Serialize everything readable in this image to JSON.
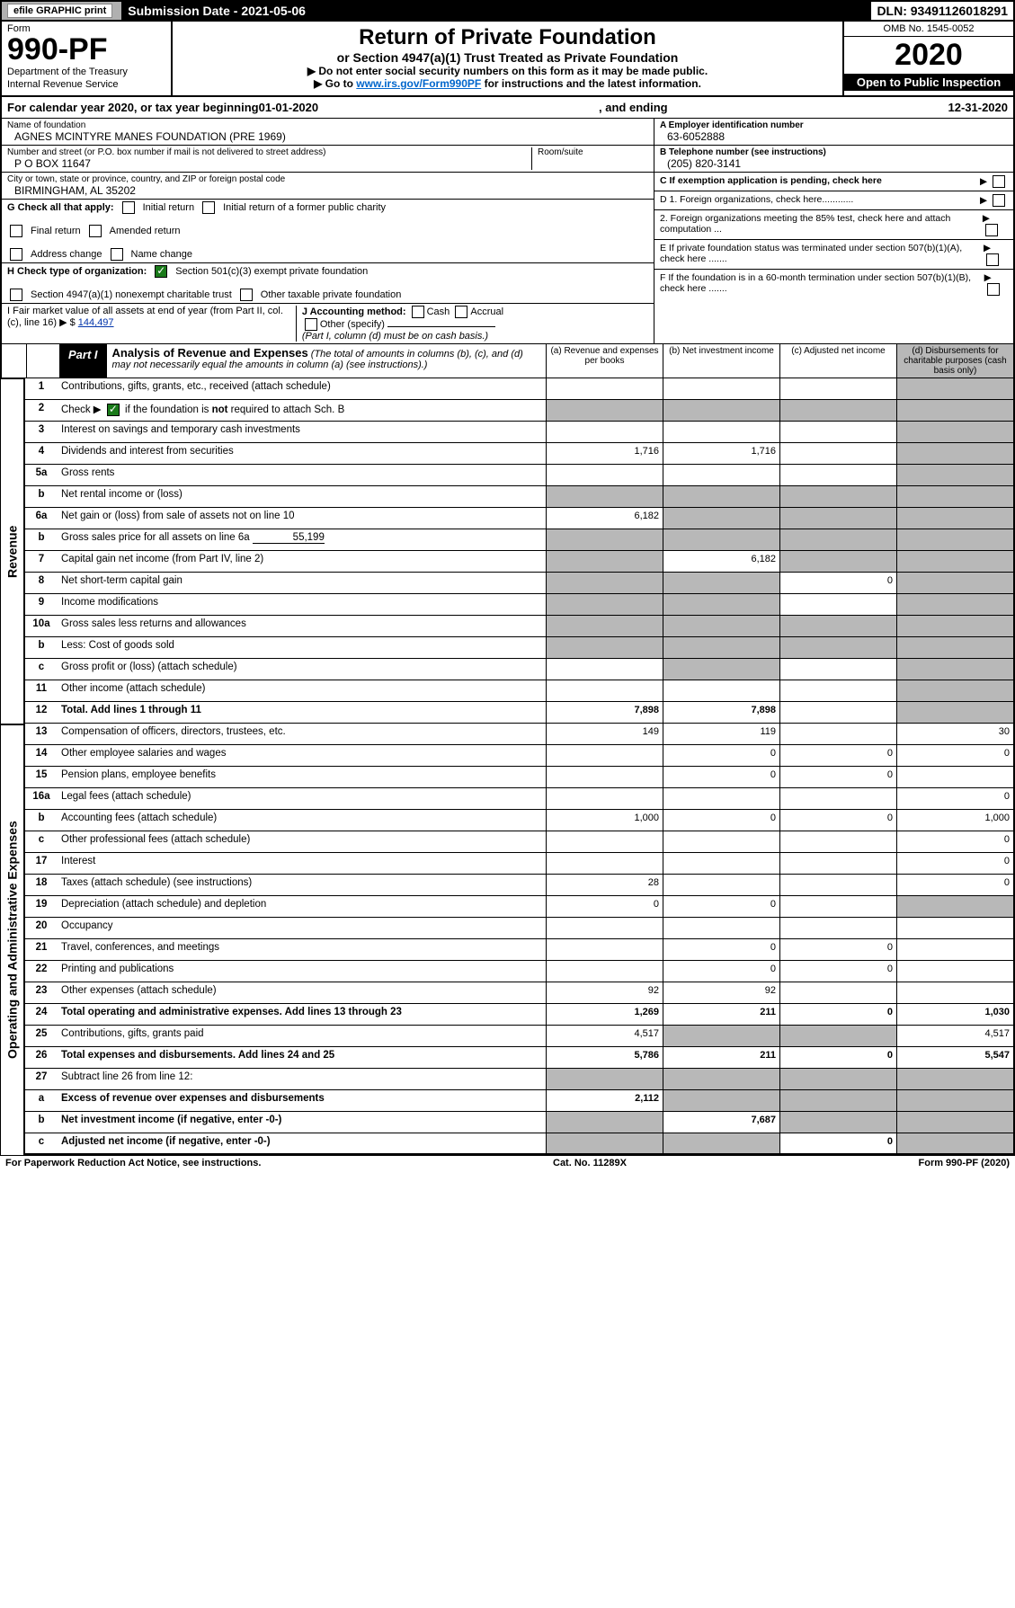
{
  "header": {
    "efile": "efile GRAPHIC print",
    "submission": "Submission Date - 2021-05-06",
    "dln": "DLN: 93491126018291"
  },
  "formbox": {
    "form_word": "Form",
    "form_num": "990-PF",
    "dept1": "Department of the Treasury",
    "dept2": "Internal Revenue Service",
    "title": "Return of Private Foundation",
    "subtitle": "or Section 4947(a)(1) Trust Treated as Private Foundation",
    "note1": "▶ Do not enter social security numbers on this form as it may be made public.",
    "note2_pre": "▶ Go to ",
    "note2_link": "www.irs.gov/Form990PF",
    "note2_post": " for instructions and the latest information.",
    "omb": "OMB No. 1545-0052",
    "year": "2020",
    "inspection": "Open to Public Inspection"
  },
  "calendar": {
    "text_pre": "For calendar year 2020, or tax year beginning ",
    "begin": "01-01-2020",
    "mid": " , and ending ",
    "end": "12-31-2020"
  },
  "entity": {
    "name_label": "Name of foundation",
    "name": "AGNES MCINTYRE MANES FOUNDATION (PRE 1969)",
    "addr_label": "Number and street (or P.O. box number if mail is not delivered to street address)",
    "room_label": "Room/suite",
    "addr": "P O BOX 11647",
    "city_label": "City or town, state or province, country, and ZIP or foreign postal code",
    "city": "BIRMINGHAM, AL  35202",
    "A_label": "A Employer identification number",
    "A_val": "63-6052888",
    "B_label": "B Telephone number (see instructions)",
    "B_val": "(205) 820-3141",
    "C_label": "C If exemption application is pending, check here"
  },
  "G": {
    "label": "G Check all that apply:",
    "opts": [
      "Initial return",
      "Initial return of a former public charity",
      "Final return",
      "Amended return",
      "Address change",
      "Name change"
    ]
  },
  "H": {
    "label": "H Check type of organization:",
    "opt1": "Section 501(c)(3) exempt private foundation",
    "opt2": "Section 4947(a)(1) nonexempt charitable trust",
    "opt3": "Other taxable private foundation"
  },
  "I": {
    "label": "I Fair market value of all assets at end of year (from Part II, col. (c), line 16) ▶ $",
    "val": "144,497"
  },
  "J": {
    "label": "J Accounting method:",
    "cash": "Cash",
    "accrual": "Accrual",
    "other": "Other (specify)",
    "note": "(Part I, column (d) must be on cash basis.)"
  },
  "D": {
    "d1": "D 1. Foreign organizations, check here............",
    "d2": "2. Foreign organizations meeting the 85% test, check here and attach computation ..."
  },
  "E": "E  If private foundation status was terminated under section 507(b)(1)(A), check here .......",
  "F": "F  If the foundation is in a 60-month termination under section 507(b)(1)(B), check here .......",
  "part1": {
    "label": "Part I",
    "title": "Analysis of Revenue and Expenses",
    "note": " (The total of amounts in columns (b), (c), and (d) may not necessarily equal the amounts in column (a) (see instructions).)",
    "cols": {
      "a": "(a) Revenue and expenses per books",
      "b": "(b) Net investment income",
      "c": "(c) Adjusted net income",
      "d": "(d) Disbursements for charitable purposes (cash basis only)"
    }
  },
  "side_labels": {
    "revenue": "Revenue",
    "expenses": "Operating and Administrative Expenses"
  },
  "lines": {
    "l1": {
      "n": "1",
      "t": "Contributions, gifts, grants, etc., received (attach schedule)",
      "a": "",
      "b": "",
      "c": "",
      "d": "",
      "sa": false,
      "sb": false,
      "sc": false,
      "sd": true
    },
    "l2": {
      "n": "2",
      "t": "Check ▶ ☑ if the foundation is not required to attach Sch. B",
      "t2": "",
      "a": "",
      "b": "",
      "c": "",
      "d": "",
      "sa": true,
      "sb": true,
      "sc": true,
      "sd": true,
      "checked": true
    },
    "l3": {
      "n": "3",
      "t": "Interest on savings and temporary cash investments",
      "a": "",
      "b": "",
      "c": "",
      "d": "",
      "sa": false,
      "sb": false,
      "sc": false,
      "sd": true
    },
    "l4": {
      "n": "4",
      "t": "Dividends and interest from securities",
      "a": "1,716",
      "b": "1,716",
      "c": "",
      "d": "",
      "sa": false,
      "sb": false,
      "sc": false,
      "sd": true
    },
    "l5a": {
      "n": "5a",
      "t": "Gross rents",
      "a": "",
      "b": "",
      "c": "",
      "d": "",
      "sa": false,
      "sb": false,
      "sc": false,
      "sd": true
    },
    "l5b": {
      "n": "b",
      "t": "Net rental income or (loss)",
      "a": "",
      "b": "",
      "c": "",
      "d": "",
      "sa": true,
      "sb": true,
      "sc": true,
      "sd": true
    },
    "l6a": {
      "n": "6a",
      "t": "Net gain or (loss) from sale of assets not on line 10",
      "a": "6,182",
      "b": "",
      "c": "",
      "d": "",
      "sa": false,
      "sb": true,
      "sc": true,
      "sd": true
    },
    "l6b": {
      "n": "b",
      "t": "Gross sales price for all assets on line 6a",
      "inline_val": "55,199",
      "a": "",
      "b": "",
      "c": "",
      "d": "",
      "sa": true,
      "sb": true,
      "sc": true,
      "sd": true
    },
    "l7": {
      "n": "7",
      "t": "Capital gain net income (from Part IV, line 2)",
      "a": "",
      "b": "6,182",
      "c": "",
      "d": "",
      "sa": true,
      "sb": false,
      "sc": true,
      "sd": true
    },
    "l8": {
      "n": "8",
      "t": "Net short-term capital gain",
      "a": "",
      "b": "",
      "c": "0",
      "d": "",
      "sa": true,
      "sb": true,
      "sc": false,
      "sd": true
    },
    "l9": {
      "n": "9",
      "t": "Income modifications",
      "a": "",
      "b": "",
      "c": "",
      "d": "",
      "sa": true,
      "sb": true,
      "sc": false,
      "sd": true
    },
    "l10a": {
      "n": "10a",
      "t": "Gross sales less returns and allowances",
      "a": "",
      "b": "",
      "c": "",
      "d": "",
      "sa": true,
      "sb": true,
      "sc": true,
      "sd": true
    },
    "l10b": {
      "n": "b",
      "t": "Less: Cost of goods sold",
      "a": "",
      "b": "",
      "c": "",
      "d": "",
      "sa": true,
      "sb": true,
      "sc": true,
      "sd": true
    },
    "l10c": {
      "n": "c",
      "t": "Gross profit or (loss) (attach schedule)",
      "a": "",
      "b": "",
      "c": "",
      "d": "",
      "sa": false,
      "sb": true,
      "sc": false,
      "sd": true
    },
    "l11": {
      "n": "11",
      "t": "Other income (attach schedule)",
      "a": "",
      "b": "",
      "c": "",
      "d": "",
      "sa": false,
      "sb": false,
      "sc": false,
      "sd": true
    },
    "l12": {
      "n": "12",
      "t": "Total. Add lines 1 through 11",
      "a": "7,898",
      "b": "7,898",
      "c": "",
      "d": "",
      "sa": false,
      "sb": false,
      "sc": false,
      "sd": true,
      "bold": true
    },
    "l13": {
      "n": "13",
      "t": "Compensation of officers, directors, trustees, etc.",
      "a": "149",
      "b": "119",
      "c": "",
      "d": "30"
    },
    "l14": {
      "n": "14",
      "t": "Other employee salaries and wages",
      "a": "",
      "b": "0",
      "c": "0",
      "d": "0"
    },
    "l15": {
      "n": "15",
      "t": "Pension plans, employee benefits",
      "a": "",
      "b": "0",
      "c": "0",
      "d": ""
    },
    "l16a": {
      "n": "16a",
      "t": "Legal fees (attach schedule)",
      "a": "",
      "b": "",
      "c": "",
      "d": "0"
    },
    "l16b": {
      "n": "b",
      "t": "Accounting fees (attach schedule)",
      "a": "1,000",
      "b": "0",
      "c": "0",
      "d": "1,000"
    },
    "l16c": {
      "n": "c",
      "t": "Other professional fees (attach schedule)",
      "a": "",
      "b": "",
      "c": "",
      "d": "0"
    },
    "l17": {
      "n": "17",
      "t": "Interest",
      "a": "",
      "b": "",
      "c": "",
      "d": "0"
    },
    "l18": {
      "n": "18",
      "t": "Taxes (attach schedule) (see instructions)",
      "a": "28",
      "b": "",
      "c": "",
      "d": "0"
    },
    "l19": {
      "n": "19",
      "t": "Depreciation (attach schedule) and depletion",
      "a": "0",
      "b": "0",
      "c": "",
      "d": "",
      "sd": true
    },
    "l20": {
      "n": "20",
      "t": "Occupancy",
      "a": "",
      "b": "",
      "c": "",
      "d": ""
    },
    "l21": {
      "n": "21",
      "t": "Travel, conferences, and meetings",
      "a": "",
      "b": "0",
      "c": "0",
      "d": ""
    },
    "l22": {
      "n": "22",
      "t": "Printing and publications",
      "a": "",
      "b": "0",
      "c": "0",
      "d": ""
    },
    "l23": {
      "n": "23",
      "t": "Other expenses (attach schedule)",
      "a": "92",
      "b": "92",
      "c": "",
      "d": ""
    },
    "l24": {
      "n": "24",
      "t": "Total operating and administrative expenses. Add lines 13 through 23",
      "a": "1,269",
      "b": "211",
      "c": "0",
      "d": "1,030",
      "bold": true
    },
    "l25": {
      "n": "25",
      "t": "Contributions, gifts, grants paid",
      "a": "4,517",
      "b": "",
      "c": "",
      "d": "4,517",
      "sb": true,
      "sc": true
    },
    "l26": {
      "n": "26",
      "t": "Total expenses and disbursements. Add lines 24 and 25",
      "a": "5,786",
      "b": "211",
      "c": "0",
      "d": "5,547",
      "bold": true
    },
    "l27": {
      "n": "27",
      "t": "Subtract line 26 from line 12:",
      "a": "",
      "b": "",
      "c": "",
      "d": "",
      "sa": true,
      "sb": true,
      "sc": true,
      "sd": true
    },
    "l27a": {
      "n": "a",
      "t": "Excess of revenue over expenses and disbursements",
      "a": "2,112",
      "b": "",
      "c": "",
      "d": "",
      "bold": true,
      "sb": true,
      "sc": true,
      "sd": true
    },
    "l27b": {
      "n": "b",
      "t": "Net investment income (if negative, enter -0-)",
      "a": "",
      "b": "7,687",
      "c": "",
      "d": "",
      "bold": true,
      "sa": true,
      "sc": true,
      "sd": true
    },
    "l27c": {
      "n": "c",
      "t": "Adjusted net income (if negative, enter -0-)",
      "a": "",
      "b": "",
      "c": "0",
      "d": "",
      "bold": true,
      "sa": true,
      "sb": true,
      "sd": true
    }
  },
  "footer": {
    "left": "For Paperwork Reduction Act Notice, see instructions.",
    "mid": "Cat. No. 11289X",
    "right": "Form 990-PF (2020)"
  },
  "colors": {
    "shaded": "#b8b8b8",
    "black": "#000000",
    "link": "#0066cc",
    "checked_green": "#1a7a1a"
  }
}
